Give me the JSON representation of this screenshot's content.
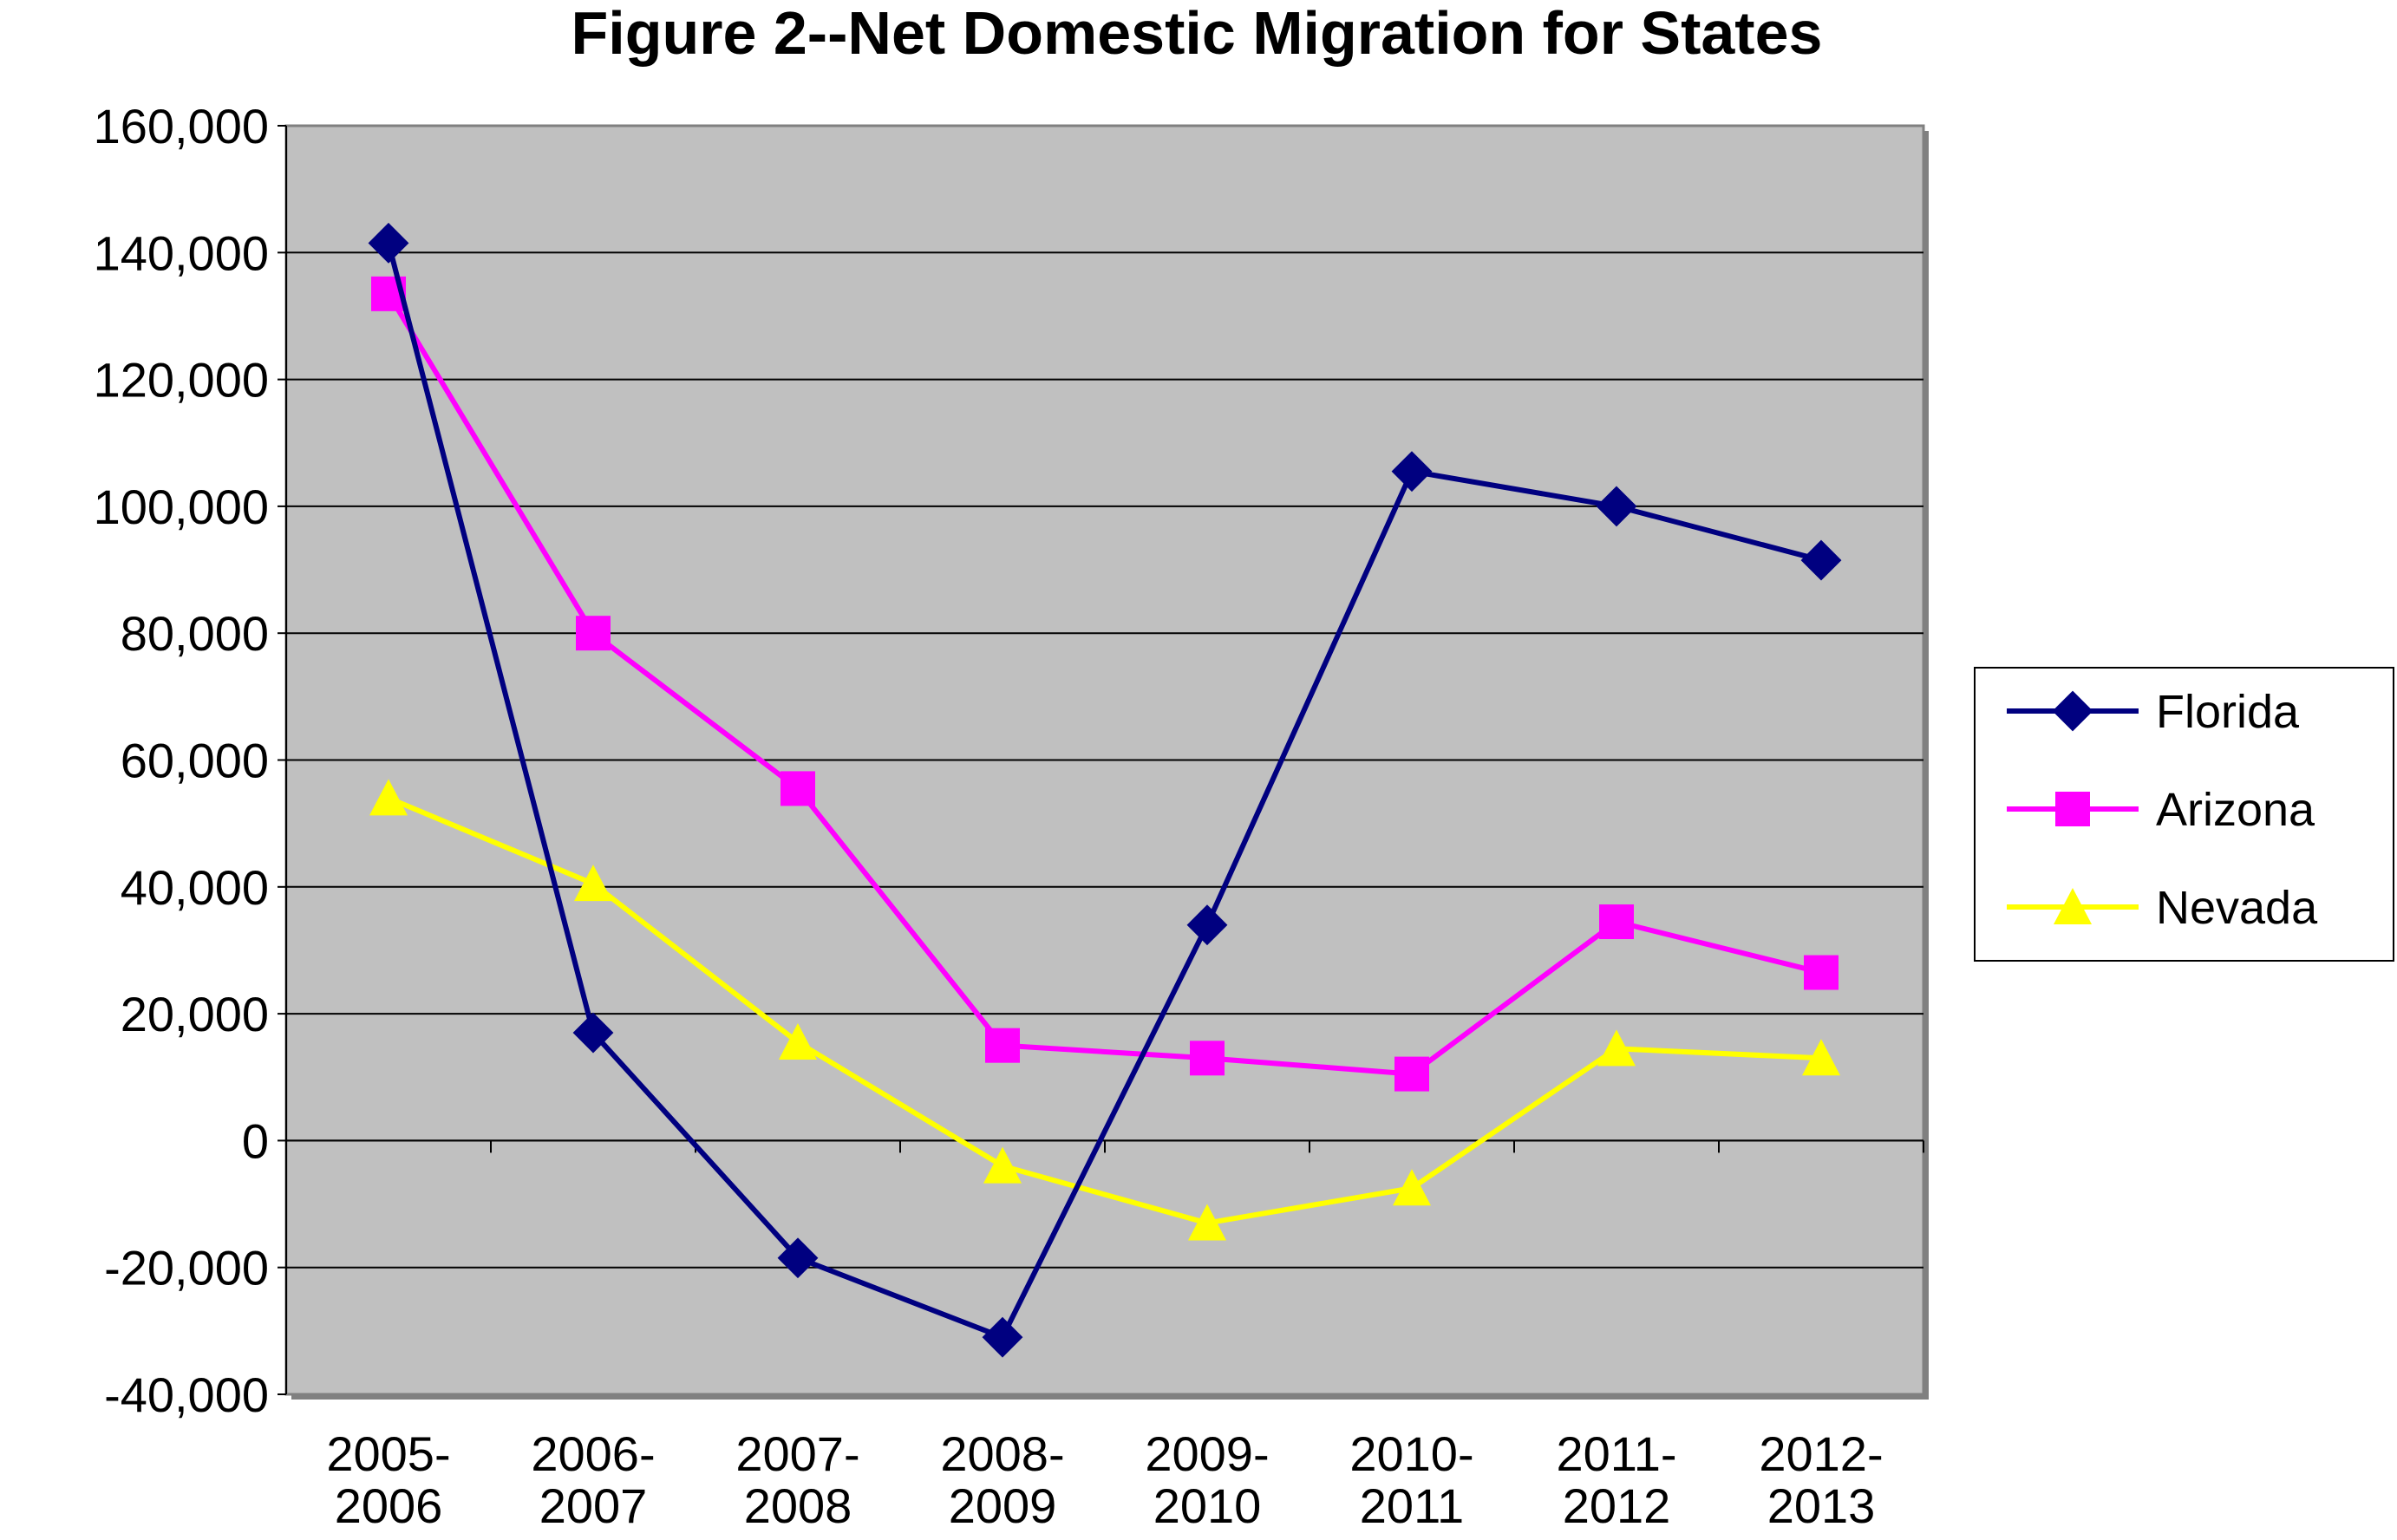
{
  "chart_data": {
    "type": "line",
    "title": "Figure 2--Net Domestic Migration for States",
    "xlabel": "",
    "ylabel": "",
    "ylim": [
      -40000,
      160000
    ],
    "ytick_step": 20000,
    "ytick_labels": [
      "160,000",
      "140,000",
      "120,000",
      "100,000",
      "80,000",
      "60,000",
      "40,000",
      "20,000",
      "0",
      "-20,000",
      "-40,000"
    ],
    "categories": [
      [
        "2005-",
        "2006"
      ],
      [
        "2006-",
        "2007"
      ],
      [
        "2007-",
        "2008"
      ],
      [
        "2008-",
        "2009"
      ],
      [
        "2009-",
        "2010"
      ],
      [
        "2010-",
        "2011"
      ],
      [
        "2011-",
        "2012"
      ],
      [
        "2012-",
        "2013"
      ]
    ],
    "grid": true,
    "legend_position": "right",
    "series": [
      {
        "name": "Florida",
        "marker": "diamond",
        "color": "#000080",
        "values": [
          141500,
          17000,
          -18500,
          -31000,
          34000,
          105500,
          100000,
          91500
        ]
      },
      {
        "name": "Arizona",
        "marker": "square",
        "color": "#FF00FF",
        "values": [
          133500,
          80000,
          55500,
          15000,
          13000,
          10500,
          34500,
          26500
        ]
      },
      {
        "name": "Nevada",
        "marker": "triangle",
        "color": "#FFFF00",
        "values": [
          54000,
          40500,
          15500,
          -4000,
          -13000,
          -7500,
          14500,
          13000
        ]
      }
    ]
  }
}
